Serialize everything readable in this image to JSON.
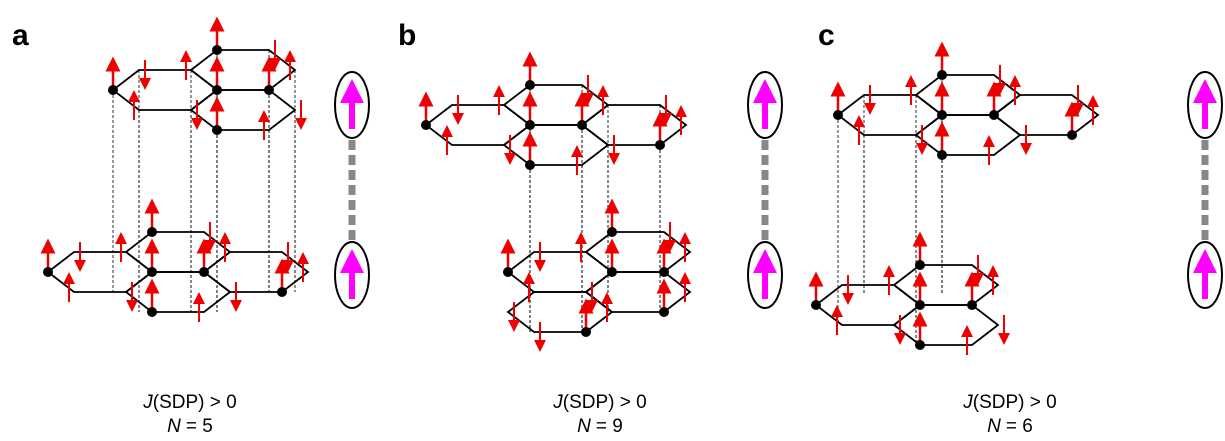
{
  "panels": [
    {
      "label": "a",
      "caption": {
        "line1": {
          "symbol": "J",
          "text": "(SDP) > 0"
        },
        "line2": {
          "symbol": "N",
          "text": "= 5"
        }
      }
    },
    {
      "label": "b",
      "caption": {
        "line1": {
          "symbol": "J",
          "text": "(SDP) > 0"
        },
        "line2": {
          "symbol": "N",
          "text": "= 9"
        }
      }
    },
    {
      "label": "c",
      "caption": {
        "line1": {
          "symbol": "J",
          "text": "(SDP) > 0"
        },
        "line2": {
          "symbol": "N",
          "text": "= 6"
        }
      }
    }
  ]
}
